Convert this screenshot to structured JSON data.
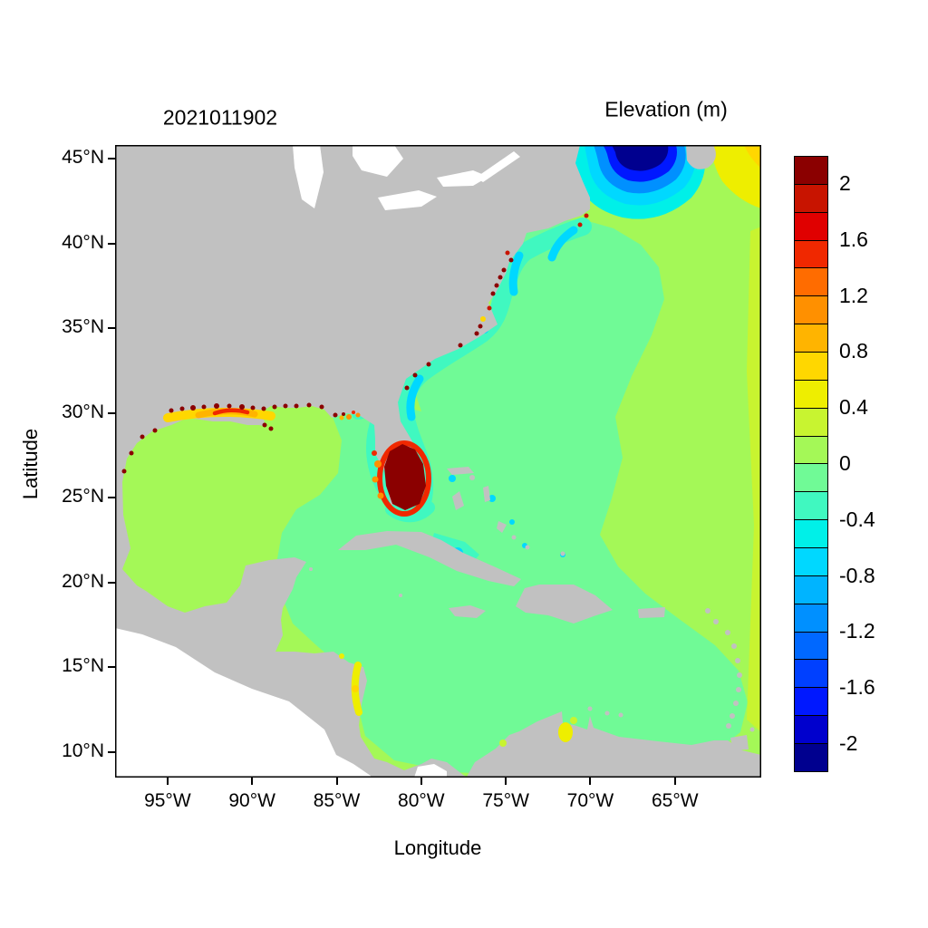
{
  "figure": {
    "left_title": "2021011902",
    "right_title": "Elevation (m)"
  },
  "axes": {
    "x_label": "Longitude",
    "y_label": "Latitude",
    "x_ticks": [
      {
        "label": "95°W",
        "lon": -95
      },
      {
        "label": "90°W",
        "lon": -90
      },
      {
        "label": "85°W",
        "lon": -85
      },
      {
        "label": "80°W",
        "lon": -80
      },
      {
        "label": "75°W",
        "lon": -75
      },
      {
        "label": "70°W",
        "lon": -70
      },
      {
        "label": "65°W",
        "lon": -65
      }
    ],
    "y_ticks": [
      {
        "label": "45°N",
        "lat": 45
      },
      {
        "label": "40°N",
        "lat": 40
      },
      {
        "label": "35°N",
        "lat": 35
      },
      {
        "label": "30°N",
        "lat": 30
      },
      {
        "label": "25°N",
        "lat": 25
      },
      {
        "label": "20°N",
        "lat": 20
      },
      {
        "label": "15°N",
        "lat": 15
      },
      {
        "label": "10°N",
        "lat": 10
      }
    ]
  },
  "colorbar": {
    "title": "Elevation (m)",
    "min": -2.2,
    "max": 2.2,
    "step": 0.2,
    "tick_labels": [
      "2",
      "1.6",
      "1.2",
      "0.8",
      "0.4",
      "0",
      "-0.4",
      "-0.8",
      "-1.2",
      "-1.6",
      "-2"
    ],
    "tick_values": [
      2,
      1.6,
      1.2,
      0.8,
      0.4,
      0,
      -0.4,
      -0.8,
      -1.2,
      -1.6,
      -2
    ],
    "colors_bottom_to_top": [
      "#00008F",
      "#0000CD",
      "#0018FF",
      "#0040FF",
      "#0068FF",
      "#0090FF",
      "#00B4FF",
      "#00D8FF",
      "#00F0E8",
      "#40F8C0",
      "#70FA96",
      "#A4F857",
      "#C8F430",
      "#EEEE00",
      "#FFD700",
      "#FFB400",
      "#FF9000",
      "#FF6C00",
      "#F02800",
      "#E00000",
      "#C81400",
      "#8B0000"
    ]
  },
  "map_colors": {
    "land": "#C1C1C1",
    "water_outside_domain": "#FFFFFF",
    "band_neg_20": "#00008F",
    "band_neg_16": "#0018FF",
    "band_neg_12": "#0090FF",
    "band_neg_08": "#00D8FF",
    "band_neg_06": "#00F0E8",
    "band_neg_04": "#40F8C0",
    "band_neg_0": "#70FA96",
    "band_pos_0": "#A4F857",
    "band_pos_04": "#C8F430",
    "band_pos_06": "#EEEE00",
    "band_pos_08": "#FFD700",
    "band_pos_10": "#FFB400",
    "band_pos_12": "#FF9000",
    "band_pos_16": "#F02800",
    "band_pos_18": "#C81400",
    "band_pos_20": "#8B0000",
    "axis_line": "#000000"
  },
  "chart_data": {
    "type": "heatmap",
    "title": "Elevation (m)",
    "cycle_label": "2021011902",
    "xlabel": "Longitude",
    "ylabel": "Latitude",
    "lon_range_deg": [
      -98.1,
      -59.9
    ],
    "lat_range_deg": [
      8.5,
      45.8
    ],
    "value_range_m": [
      -2.2,
      2.2
    ],
    "contour_interval_m": 0.2,
    "colorbar_tick_values": [
      2,
      1.6,
      1.2,
      0.8,
      0.4,
      0,
      -0.4,
      -0.8,
      -1.2,
      -1.6,
      -2
    ],
    "land_rendering": "gray, ocean colored by modeled water-surface elevation",
    "notable_features": [
      {
        "region": "Bay of Fundy / Gulf of Maine",
        "approx_value_m": -2.2
      },
      {
        "region": "New England shelf ring around Gulf of Maine",
        "approx_value_m": -0.8
      },
      {
        "region": "US Atlantic coastal shelf (Cape Cod to Florida)",
        "approx_value_m": -0.5
      },
      {
        "region": "South Florida / Everglades",
        "approx_value_m": 2.2
      },
      {
        "region": "Louisiana-Mississippi shelf",
        "approx_value_m": 1.0
      },
      {
        "region": "Northern Gulf coast shoreline fringe",
        "approx_value_m": 2.0
      },
      {
        "region": "Western Gulf of Mexico interior",
        "approx_value_m": 0.1
      },
      {
        "region": "Eastern Gulf of Mexico",
        "approx_value_m": -0.1
      },
      {
        "region": "Caribbean Sea",
        "approx_value_m": -0.1
      },
      {
        "region": "Open Atlantic, eastern part of domain",
        "approx_value_m": 0.1
      },
      {
        "region": "Scotian shelf, northeast corner",
        "approx_value_m": 0.5
      },
      {
        "region": "Old Bahama Channel south of Cuba",
        "approx_value_m": -0.8
      },
      {
        "region": "Lake Maracaibo",
        "approx_value_m": 0.5
      },
      {
        "region": "Nicaragua coast",
        "approx_value_m": 0.5
      }
    ]
  }
}
